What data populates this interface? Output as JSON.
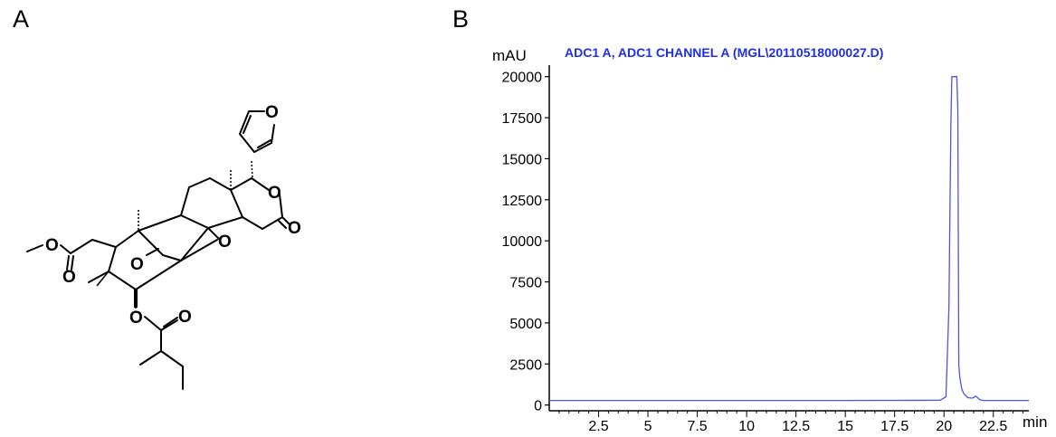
{
  "panels": {
    "a_label": "A",
    "b_label": "B"
  },
  "molecule": {
    "atom_O": "O"
  },
  "chart_data": {
    "type": "line",
    "title": "ADC1 A, ADC1 CHANNEL A (MGL\\20110518000027.D)",
    "ylabel": "mAU",
    "xlabel": "min",
    "xlim": [
      0,
      24.3
    ],
    "ylim": [
      -350,
      20700
    ],
    "x_ticks": [
      2.5,
      5,
      7.5,
      10,
      12.5,
      15,
      17.5,
      20,
      22.5
    ],
    "x_tick_labels": [
      "2.5",
      "5",
      "7.5",
      "10",
      "12.5",
      "15",
      "17.5",
      "20",
      "22.5"
    ],
    "y_ticks": [
      0,
      2500,
      5000,
      7500,
      10000,
      12500,
      15000,
      17500,
      20000
    ],
    "y_tick_labels": [
      "0",
      "2500",
      "5000",
      "7500",
      "10000",
      "12500",
      "15000",
      "17500",
      "20000"
    ],
    "grid": false,
    "line_color": "#4a55e6",
    "title_color": "#1f2ee8",
    "series": [
      {
        "x": [
          0,
          5,
          10,
          15,
          19.8,
          20.1,
          20.25,
          20.35,
          20.4,
          20.45,
          20.55,
          20.65,
          20.7,
          20.75,
          20.8,
          20.9,
          21.0,
          21.2,
          21.4,
          21.5,
          21.6,
          21.7,
          21.8,
          22.0,
          23.0,
          24.3
        ],
        "y": [
          280,
          280,
          280,
          280,
          290,
          500,
          6000,
          17000,
          20000,
          20000,
          20000,
          20000,
          18000,
          2400,
          1700,
          1000,
          700,
          450,
          420,
          450,
          550,
          450,
          330,
          280,
          280,
          280
        ]
      }
    ]
  }
}
